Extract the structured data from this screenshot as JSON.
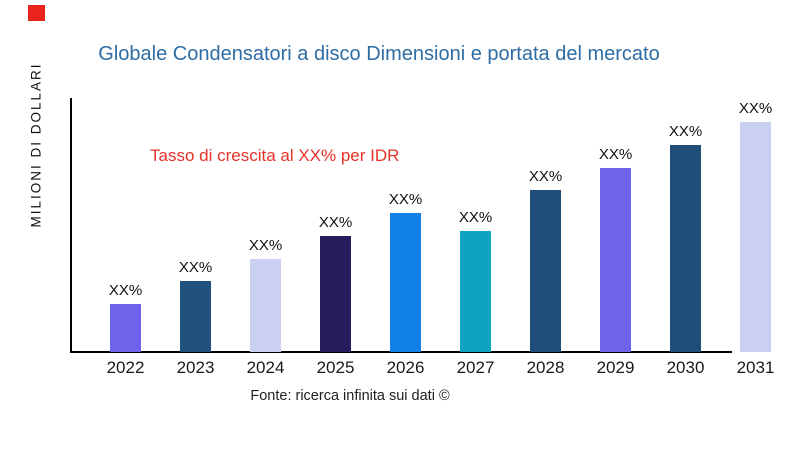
{
  "brand_mark": {
    "color": "#e8241d"
  },
  "title": {
    "text": "Globale Condensatori a disco Dimensioni e portata del mercato",
    "color": "#2e6ca4"
  },
  "annotation": {
    "text": "Tasso di crescita al XX% per IDR",
    "color": "#e63329"
  },
  "source": {
    "text": "Fonte: ricerca infinita sui dati ©"
  },
  "chart_data": {
    "type": "bar",
    "title": "Globale Condensatori a disco Dimensioni e portata del mercato",
    "xlabel": "",
    "ylabel": "MILIONI DI DOLLARI",
    "categories": [
      "2022",
      "2023",
      "2024",
      "2025",
      "2026",
      "2027",
      "2028",
      "2029",
      "2030",
      "2031"
    ],
    "bar_labels": [
      "XX%",
      "XX%",
      "XX%",
      "XX%",
      "XX%",
      "XX%",
      "XX%",
      "XX%",
      "XX%",
      "XX%"
    ],
    "relative_heights": [
      48,
      71,
      93,
      116,
      139,
      121,
      162,
      184,
      207,
      230
    ],
    "bar_colors": [
      "#6f62eb",
      "#21517e",
      "#cbcff1",
      "#251d5c",
      "#1180e6",
      "#0ea3bf",
      "#1f4e79",
      "#6f62eb",
      "#1f4e79",
      "#cbcff1"
    ],
    "annotation": "Tasso di crescita al XX% per IDR",
    "source": "Fonte: ricerca infinita sui dati ©",
    "grid": false,
    "legend": false,
    "y_ticks": []
  }
}
